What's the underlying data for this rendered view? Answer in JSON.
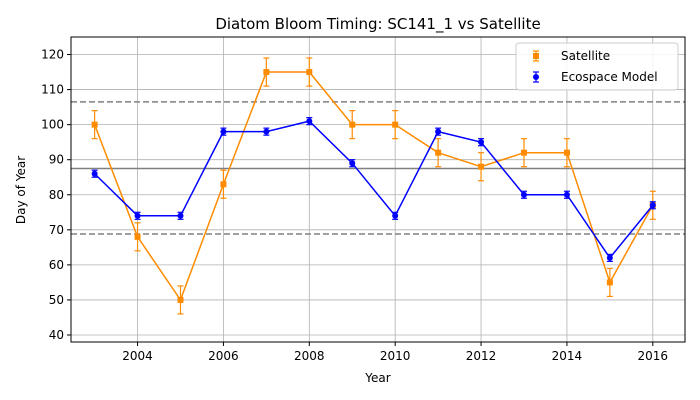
{
  "chart_data": {
    "type": "line",
    "title": "Diatom Bloom Timing: SC141_1 vs Satellite",
    "xlabel": "Year",
    "ylabel": "Day of Year",
    "xlim": [
      2002.45,
      2016.75
    ],
    "ylim": [
      38,
      125
    ],
    "x_ticks": [
      2004,
      2006,
      2008,
      2010,
      2012,
      2014,
      2016
    ],
    "y_ticks": [
      40,
      50,
      60,
      70,
      80,
      90,
      100,
      110,
      120
    ],
    "grid": true,
    "legend_position": "top-right",
    "series": [
      {
        "name": "Satellite",
        "color": "#ff8c00",
        "marker": "square",
        "x": [
          2003,
          2004,
          2005,
          2006,
          2007,
          2008,
          2009,
          2010,
          2011,
          2012,
          2013,
          2014,
          2015,
          2016
        ],
        "y": [
          100,
          68,
          50,
          83,
          115,
          115,
          100,
          100,
          92,
          88,
          92,
          92,
          55,
          77
        ],
        "error": [
          4,
          4,
          4,
          4,
          4,
          4,
          4,
          4,
          4,
          4,
          4,
          4,
          4,
          4
        ]
      },
      {
        "name": "Ecospace Model",
        "color": "#0000ff",
        "marker": "circle",
        "x": [
          2003,
          2004,
          2005,
          2006,
          2007,
          2008,
          2009,
          2010,
          2011,
          2012,
          2013,
          2014,
          2015,
          2016
        ],
        "y": [
          86,
          74,
          74,
          98,
          98,
          101,
          89,
          74,
          98,
          95,
          80,
          80,
          62,
          77
        ],
        "error": [
          1,
          1,
          1,
          1,
          1,
          1,
          1,
          1,
          1,
          1,
          1,
          1,
          1,
          1
        ]
      }
    ],
    "reference_lines": [
      {
        "y": 87.5,
        "style": "solid",
        "color": "#808080"
      },
      {
        "y": 106.5,
        "style": "dashed",
        "color": "#808080"
      },
      {
        "y": 68.8,
        "style": "dashed",
        "color": "#808080"
      }
    ]
  }
}
